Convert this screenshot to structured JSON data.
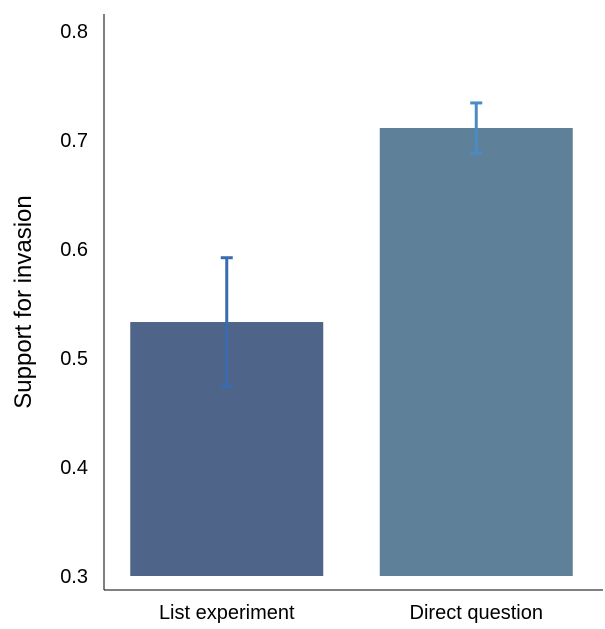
{
  "chart_data": {
    "type": "bar",
    "title": "",
    "xlabel": "",
    "ylabel": "Support for invasion",
    "categories": [
      "List experiment",
      "Direct question"
    ],
    "values": [
      0.533,
      0.711
    ],
    "error_low": [
      0.474,
      0.688
    ],
    "error_high": [
      0.592,
      0.734
    ],
    "ylim": [
      0.3,
      0.82
    ],
    "yticks": [
      "0.3",
      "0.4",
      "0.5",
      "0.6",
      "0.7",
      "0.8"
    ],
    "grid": false,
    "legend": "none",
    "bar_colors": [
      "#4e6589",
      "#5f8099"
    ],
    "error_bar_colors": [
      "#3a6bb0",
      "#4a8bc4"
    ],
    "axis_color": "#000000"
  }
}
